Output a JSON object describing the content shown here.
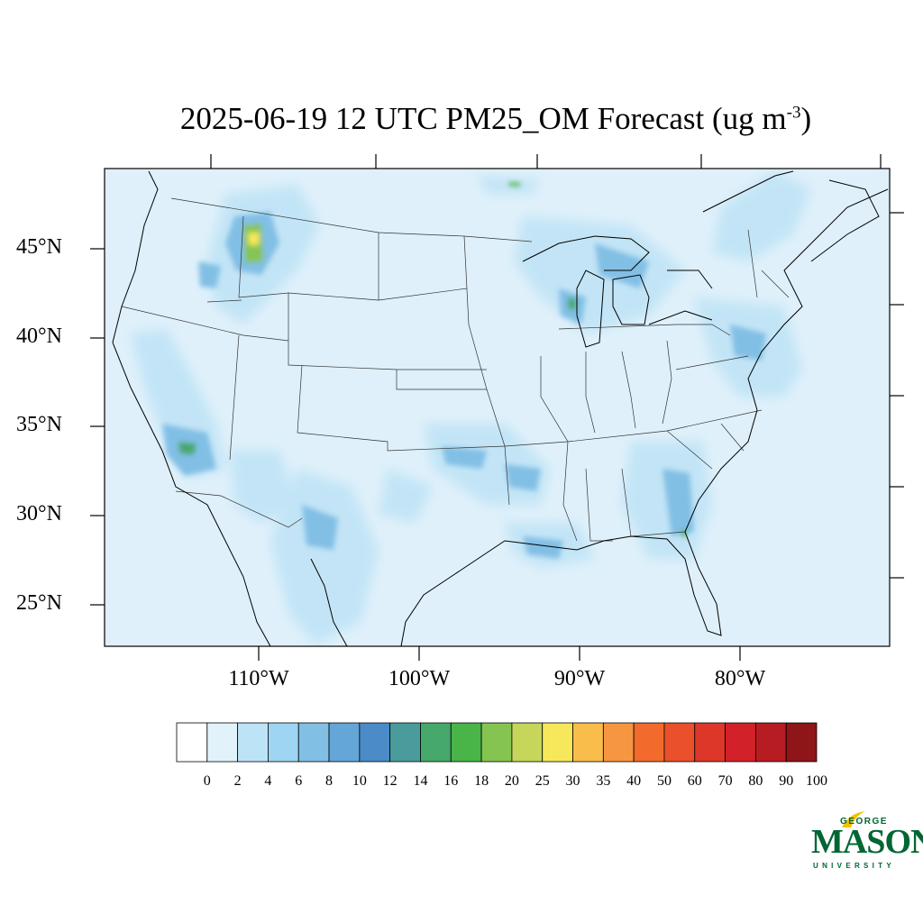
{
  "title": {
    "main": "2025-06-19 12 UTC PM25_OM Forecast (ug m",
    "sup": "-3",
    "close": ")"
  },
  "map": {
    "lat_labels": [
      "45°N",
      "40°N",
      "35°N",
      "30°N",
      "25°N"
    ],
    "lon_labels": [
      "110°W",
      "100°W",
      "90°W",
      "80°W"
    ],
    "background_color": "#dff0fa"
  },
  "colorbar": {
    "labels": [
      "0",
      "2",
      "4",
      "6",
      "8",
      "10",
      "12",
      "14",
      "16",
      "18",
      "20",
      "25",
      "30",
      "35",
      "40",
      "50",
      "60",
      "70",
      "80",
      "90",
      "100"
    ],
    "colors": [
      "#ffffff",
      "#e1f2fb",
      "#bde3f6",
      "#9dd5f3",
      "#82bfe5",
      "#65a6d9",
      "#4a8bc8",
      "#4a9c9c",
      "#46a86a",
      "#49b549",
      "#86c452",
      "#c5d65a",
      "#f6e85a",
      "#f9bd4c",
      "#f79640",
      "#f26b2c",
      "#e9502b",
      "#dc3729",
      "#d22128",
      "#b71c23",
      "#8e1518"
    ]
  },
  "logo": {
    "line1": "GEORGE",
    "line2": "MASON",
    "line3": "UNIVERSITY",
    "color": "#006633",
    "accent": "#f2c200"
  }
}
